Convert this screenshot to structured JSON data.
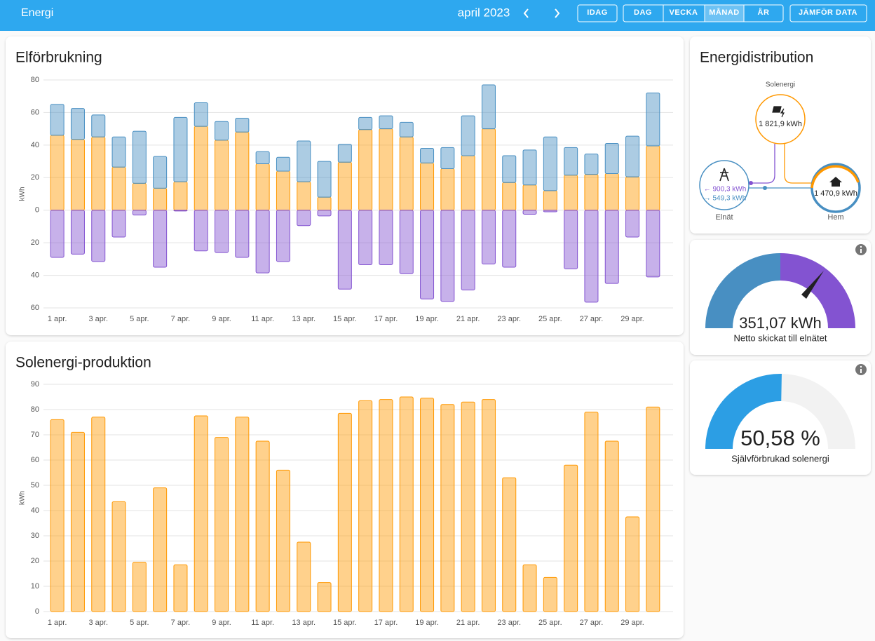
{
  "header": {
    "title": "Energi",
    "period": "april 2023",
    "buttons": [
      "IDAG",
      "DAG",
      "VECKA",
      "MÅNAD",
      "ÅR",
      "JÄMFÖR DATA"
    ]
  },
  "chart_data": [
    {
      "type": "bar",
      "title": "Elförbrukning",
      "ylabel": "kWh",
      "categories": [
        "1 apr.",
        null,
        "3 apr.",
        null,
        "5 apr.",
        null,
        "7 apr.",
        null,
        "9 apr.",
        null,
        "11 apr.",
        null,
        "13 apr.",
        null,
        "15 apr.",
        null,
        "17 apr.",
        null,
        "19 apr.",
        null,
        "21 apr.",
        null,
        "23 apr.",
        null,
        "25 apr.",
        null,
        "27 apr.",
        null,
        "29 apr.",
        null
      ],
      "series": [
        {
          "color": "#ff9800",
          "values": [
            46,
            43.5,
            45,
            26.5,
            16.5,
            13.5,
            17.5,
            51.5,
            43,
            48,
            28.5,
            24,
            17.5,
            8,
            29.5,
            49.5,
            50,
            45,
            29,
            25.5,
            33.5,
            50,
            17,
            15.5,
            12,
            21.5,
            22,
            22.5,
            20.5,
            39.5
          ]
        },
        {
          "color": "#488fc2",
          "values": [
            19,
            19,
            13.5,
            18.5,
            32,
            19.5,
            39.5,
            14.5,
            11.5,
            8.5,
            7.5,
            8.5,
            25,
            22,
            11,
            7.5,
            8,
            9,
            9,
            13,
            24.5,
            27,
            16.5,
            21.5,
            33,
            17,
            12.5,
            18.5,
            25,
            32.5
          ]
        },
        {
          "color": "#8353d1",
          "values": [
            -29,
            -27,
            -31.5,
            -16.5,
            -3,
            -35,
            -0.5,
            -25,
            -26,
            -29,
            -38.5,
            -31.5,
            -9.5,
            -3.5,
            -48.5,
            -33.5,
            -33.5,
            -39,
            -54.5,
            -56,
            -49,
            -33,
            -35,
            -2.5,
            -1,
            -36,
            -56.5,
            -45,
            -16.5,
            -41
          ]
        }
      ],
      "ylim": [
        -60,
        80
      ],
      "yticks": [
        {
          "value": -60,
          "label": "60"
        },
        {
          "value": -40,
          "label": "40"
        },
        {
          "value": -20,
          "label": "20"
        },
        0,
        20,
        40,
        60,
        80
      ],
      "grid": true
    },
    {
      "type": "bar",
      "title": "Solenergi-produktion",
      "ylabel": "kWh",
      "categories": [
        "1 apr.",
        null,
        "3 apr.",
        null,
        "5 apr.",
        null,
        "7 apr.",
        null,
        "9 apr.",
        null,
        "11 apr.",
        null,
        "13 apr.",
        null,
        "15 apr.",
        null,
        "17 apr.",
        null,
        "19 apr.",
        null,
        "21 apr.",
        null,
        "23 apr.",
        null,
        "25 apr.",
        null,
        "27 apr.",
        null,
        "29 apr.",
        null
      ],
      "color": "#ff9800",
      "values": [
        76,
        71,
        77,
        43.5,
        19.5,
        49,
        18.5,
        77.5,
        69,
        77,
        67.5,
        56,
        27.5,
        11.5,
        78.5,
        83.5,
        84,
        85,
        84.5,
        82,
        83,
        84,
        53,
        18.5,
        13.5,
        58,
        79,
        67.5,
        37.5,
        81
      ],
      "ylim": [
        0,
        90
      ],
      "yticks": [
        0,
        10,
        20,
        30,
        40,
        50,
        60,
        70,
        80,
        90
      ],
      "grid": true
    }
  ],
  "distribution": {
    "title": "Energidistribution",
    "solar": {
      "label": "Solenergi",
      "value_label": "1 821,9 kWh"
    },
    "grid": {
      "label": "Elnät",
      "import_label": "← 900,3 kWh",
      "export_label": "→ 549,3 kWh"
    },
    "home": {
      "label": "Hem",
      "value_label": "1 470,9 kWh"
    }
  },
  "gauges": [
    {
      "value": 351.07,
      "value_label": "351,07 kWh",
      "label": "Netto skickat till elnätet"
    },
    {
      "value": 50.58,
      "value_label": "50,58 %",
      "label": "Självförbrukad solenergi"
    }
  ]
}
